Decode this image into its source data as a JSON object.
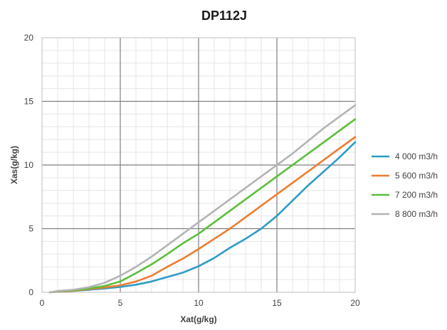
{
  "chart_data": {
    "type": "line",
    "title": "DP112J",
    "xlabel": "Xat(g/kg)",
    "ylabel": "Xas(g/kg)",
    "xlim": [
      0,
      20
    ],
    "ylim": [
      0,
      20
    ],
    "xticks": [
      0,
      5,
      10,
      15,
      20
    ],
    "yticks": [
      0,
      5,
      10,
      15,
      20
    ],
    "grid": true,
    "legend_position": "right",
    "series": [
      {
        "name": "4 000 m3/h",
        "color": "#2e9cc6",
        "x": [
          0.5,
          1,
          2,
          3,
          4,
          5,
          6,
          7,
          8,
          9,
          10,
          11,
          12,
          13,
          14,
          15,
          16,
          17,
          18,
          19,
          20
        ],
        "y": [
          0.0,
          0.05,
          0.12,
          0.2,
          0.3,
          0.42,
          0.6,
          0.85,
          1.2,
          1.55,
          2.05,
          2.7,
          3.5,
          4.2,
          5.0,
          6.0,
          7.2,
          8.4,
          9.5,
          10.6,
          11.8
        ]
      },
      {
        "name": "5 600 m3/h",
        "color": "#ed7d31",
        "x": [
          0.5,
          1,
          2,
          3,
          4,
          5,
          6,
          7,
          8,
          9,
          10,
          11,
          12,
          13,
          14,
          15,
          16,
          17,
          18,
          19,
          20
        ],
        "y": [
          0.0,
          0.05,
          0.12,
          0.25,
          0.38,
          0.55,
          0.85,
          1.3,
          2.0,
          2.65,
          3.4,
          4.2,
          5.0,
          5.9,
          6.8,
          7.7,
          8.6,
          9.5,
          10.4,
          11.3,
          12.2
        ]
      },
      {
        "name": "7 200 m3/h",
        "color": "#5cbf3a",
        "x": [
          0.5,
          1,
          2,
          3,
          4,
          5,
          6,
          7,
          8,
          9,
          10,
          11,
          12,
          13,
          14,
          15,
          16,
          17,
          18,
          19,
          20
        ],
        "y": [
          0.0,
          0.07,
          0.15,
          0.3,
          0.5,
          0.85,
          1.5,
          2.2,
          3.0,
          3.85,
          4.6,
          5.5,
          6.4,
          7.3,
          8.2,
          9.1,
          10.0,
          10.9,
          11.8,
          12.7,
          13.6
        ]
      },
      {
        "name": "8 800 m3/h",
        "color": "#b4b4b4",
        "x": [
          0.5,
          1,
          2,
          3,
          4,
          5,
          6,
          7,
          8,
          9,
          10,
          11,
          12,
          13,
          14,
          15,
          16,
          17,
          18,
          19,
          20
        ],
        "y": [
          0.0,
          0.1,
          0.2,
          0.4,
          0.75,
          1.3,
          2.0,
          2.8,
          3.7,
          4.6,
          5.5,
          6.4,
          7.3,
          8.2,
          9.1,
          10.0,
          10.9,
          11.9,
          12.9,
          13.8,
          14.7
        ]
      }
    ]
  }
}
